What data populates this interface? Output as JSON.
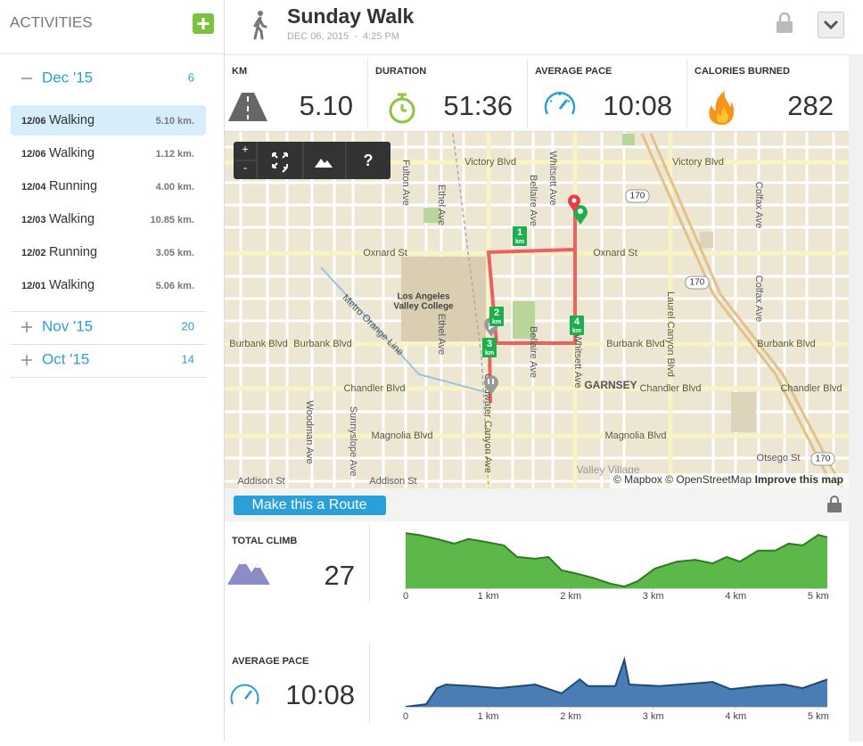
{
  "sidebar": {
    "title": "ACTIVITIES",
    "months": [
      {
        "label": "Dec '15",
        "count": 6,
        "expanded": true,
        "activities": [
          {
            "date": "12/06",
            "type": "Walking",
            "distance": "5.10 km.",
            "selected": true
          },
          {
            "date": "12/06",
            "type": "Walking",
            "distance": "1.12 km."
          },
          {
            "date": "12/04",
            "type": "Running",
            "distance": "4.00 km."
          },
          {
            "date": "12/03",
            "type": "Walking",
            "distance": "10.85 km."
          },
          {
            "date": "12/02",
            "type": "Running",
            "distance": "3.05 km."
          },
          {
            "date": "12/01",
            "type": "Walking",
            "distance": "5.06 km."
          }
        ]
      },
      {
        "label": "Nov '15",
        "count": 20,
        "expanded": false
      },
      {
        "label": "Oct '15",
        "count": 14,
        "expanded": false
      }
    ]
  },
  "header": {
    "title": "Sunday Walk",
    "date": "DEC 06, 2015  -  4:25 PM"
  },
  "stats": [
    {
      "label": "KM",
      "value": "5.10"
    },
    {
      "label": "DURATION",
      "value": "51:36"
    },
    {
      "label": "AVERAGE PACE",
      "value": "10:08"
    },
    {
      "label": "CALORIES BURNED",
      "value": "282"
    }
  ],
  "map": {
    "streets": [
      "Victory Blvd",
      "Oxnard St",
      "Burbank Blvd",
      "Chandler Blvd",
      "Magnolia Blvd",
      "Addison St",
      "Otsego St",
      "GARNSEY",
      "Fulton Ave",
      "Ethel Ave",
      "Bellaire Ave",
      "Whitsett Ave",
      "Coldwater Canyon Ave",
      "Laurel Canyon Blvd",
      "Colfax Ave",
      "Woodman Ave",
      "Sunnyslope Ave",
      "Metro Orange Line",
      "Valley Village"
    ],
    "campus": [
      "Los Angeles",
      "Valley College"
    ],
    "highway": "170",
    "markers": [
      "1",
      "2",
      "3",
      "4"
    ],
    "marker_unit": "km",
    "controls": [
      "+",
      "-",
      "?"
    ],
    "attribution": "© Mapbox © OpenStreetMap",
    "improve_link": "Improve this map"
  },
  "route_button": "Make this a Route",
  "chart_data": [
    {
      "type": "area",
      "title": "TOTAL CLIMB",
      "summary": "27",
      "color": "#5db84a",
      "line_color": "#2f7a22",
      "x": [
        0,
        0.16,
        0.38,
        0.59,
        0.76,
        0.97,
        1.19,
        1.35,
        1.57,
        1.73,
        1.89,
        2.05,
        2.27,
        2.48,
        2.65,
        2.81,
        3.02,
        3.29,
        3.51,
        3.72,
        3.89,
        4.05,
        4.27,
        4.48,
        4.64,
        4.81,
        5.0,
        5.11
      ],
      "values": [
        95,
        92,
        85,
        77,
        85,
        80,
        74,
        54,
        51,
        54,
        31,
        26,
        18,
        8,
        3,
        12,
        34,
        46,
        49,
        43,
        54,
        46,
        65,
        65,
        77,
        74,
        92,
        88
      ],
      "xlim": [
        0,
        5.11
      ],
      "ylim": [
        0,
        100
      ],
      "xticks": [
        0,
        {
          "value": 1,
          "label": "1 km"
        },
        {
          "value": 2,
          "label": "2 km"
        },
        {
          "value": 3,
          "label": "3 km"
        },
        {
          "value": 4,
          "label": "4 km"
        },
        {
          "value": 5,
          "label": "5 km"
        }
      ]
    },
    {
      "type": "area",
      "title": "AVERAGE PACE",
      "summary": "10:08",
      "color": "#4a7db3",
      "line_color": "#1d4a78",
      "x": [
        0,
        0.25,
        0.38,
        0.49,
        0.81,
        1.13,
        1.57,
        1.89,
        2.11,
        2.21,
        2.54,
        2.65,
        2.71,
        3.08,
        3.72,
        3.94,
        4.27,
        4.59,
        4.81,
        5.11
      ],
      "values": [
        0,
        5,
        36,
        43,
        40,
        36,
        43,
        26,
        53,
        40,
        40,
        91,
        43,
        40,
        48,
        34,
        40,
        43,
        36,
        53
      ],
      "xlim": [
        0,
        5.11
      ],
      "ylim": [
        0,
        100
      ],
      "xticks": [
        0,
        {
          "value": 1,
          "label": "1 km"
        },
        {
          "value": 2,
          "label": "2 km"
        },
        {
          "value": 3,
          "label": "3 km"
        },
        {
          "value": 4,
          "label": "4 km"
        },
        {
          "value": 5,
          "label": "5 km"
        }
      ]
    }
  ]
}
